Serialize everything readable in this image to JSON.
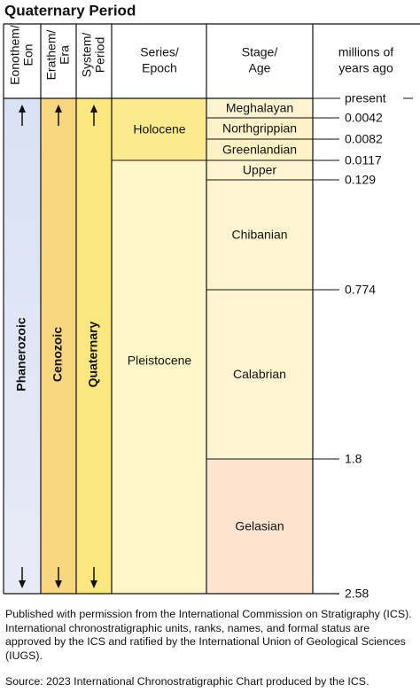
{
  "title": "Quaternary Period",
  "headers": [
    [
      "Eonothem/",
      "Eon"
    ],
    [
      "Erathem/",
      "Era"
    ],
    [
      "System/",
      "Period"
    ],
    [
      "Series/",
      "Epoch"
    ],
    [
      "Stage/",
      "Age"
    ],
    [
      "millions of",
      "years ago"
    ]
  ],
  "eon": "Phanerozoic",
  "era": "Cenozoic",
  "period": "Quaternary",
  "series": [
    "Holocene",
    "Pleistocene"
  ],
  "stages": [
    "Meghalayan",
    "Northgrippian",
    "Greenlandian",
    "Upper",
    "Chibanian",
    "Calabrian",
    "Gelasian"
  ],
  "boundaries": [
    "present",
    "0.0042",
    "0.0082",
    "0.0117",
    "0.129",
    "0.774",
    "1.8",
    "2.58"
  ],
  "note": "Published with permission from the International Commission on Stratigraphy (ICS). International chronostratigraphic units, ranks, names, and formal status are approved by the ICS and ratified by the International Union of Geological Sciences (IUGS).",
  "source": "Source: 2023 International Chronostratigraphic Chart produced by the ICS."
}
